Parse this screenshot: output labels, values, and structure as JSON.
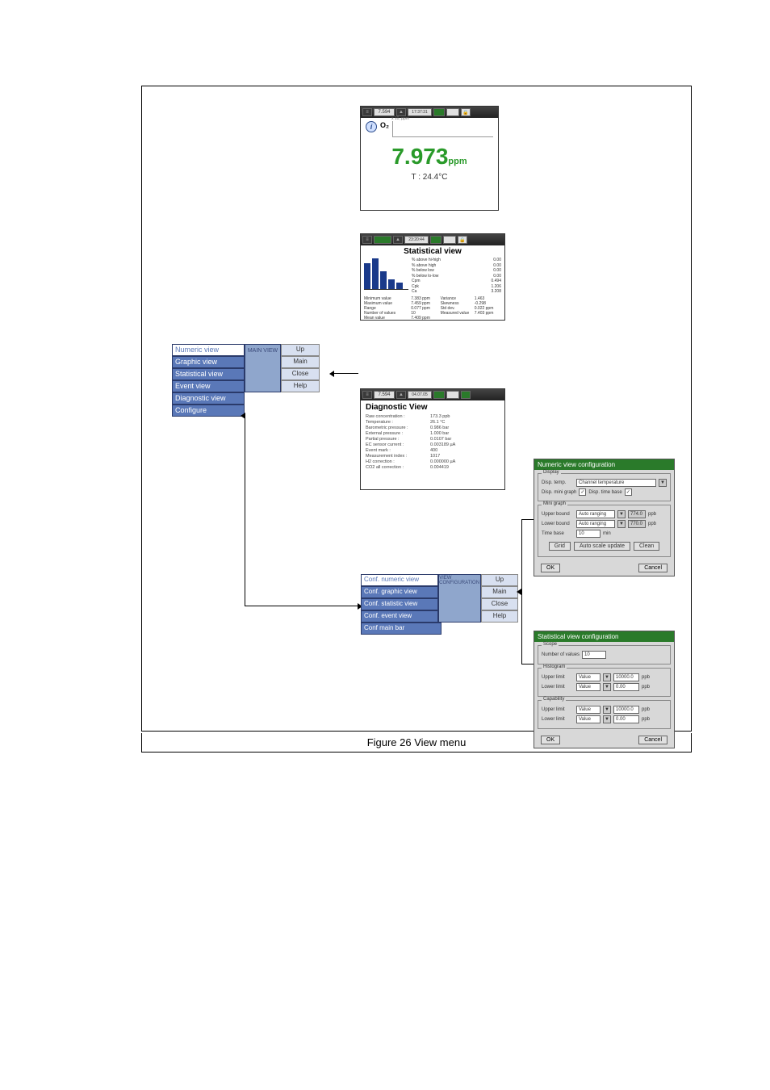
{
  "caption": "Figure 26  View menu",
  "main_view_menu": {
    "center_label": "MAIN VIEW",
    "items": [
      "Numeric view",
      "Graphic view",
      "Statistical view",
      "Event view",
      "Diagnostic view",
      "Configure"
    ],
    "selected_index": 0,
    "right_buttons": [
      "Up",
      "Main",
      "Close",
      "Help"
    ]
  },
  "view_config_menu": {
    "center_label": "VIEW CONFIGURATION",
    "items": [
      "Conf. numeric view",
      "Conf. graphic view",
      "Conf. statistic view",
      "Conf. event view",
      "Conf main bar"
    ],
    "selected_index": 0,
    "right_buttons": [
      "Up",
      "Main",
      "Close",
      "Help"
    ]
  },
  "numeric_window": {
    "do2_label": "O₂",
    "axis_label": "x 10, ppm",
    "value": "7.973",
    "unit": "ppm",
    "temperature": "T : 24.4°C"
  },
  "statistical_window": {
    "title": "Statistical view",
    "bars": [
      32,
      38,
      22,
      12,
      8
    ],
    "side_stats": [
      {
        "label": "% above hi-high",
        "val": "0.00"
      },
      {
        "label": "% above high",
        "val": "0.00"
      },
      {
        "label": "% below low",
        "val": "0.00"
      },
      {
        "label": "% below lo-low",
        "val": "0.00"
      },
      {
        "label": "Cpm",
        "val": "0.494"
      },
      {
        "label": "Cpk",
        "val": "1.206"
      },
      {
        "label": "Ca",
        "val": "3.208"
      }
    ],
    "grid_rows": [
      {
        "l1": "Minimum value",
        "v1": "7.383 ppm",
        "l2": "Variance",
        "v2": "1.463"
      },
      {
        "l1": "Maximum value",
        "v1": "7.459 ppm",
        "l2": "Skewness",
        "v2": "-0.298"
      },
      {
        "l1": "Range",
        "v1": "0.077 ppm",
        "l2": "Std dev.",
        "v2": "0.022 ppm"
      },
      {
        "l1": "Number of values",
        "v1": "10",
        "l2": "Measured value",
        "v2": "7.403 ppm"
      },
      {
        "l1": "Mean value",
        "v1": "7.409 ppm",
        "l2": "",
        "v2": ""
      }
    ]
  },
  "diagnostic_window": {
    "title": "Diagnostic View",
    "rows": [
      {
        "label": "Raw concentration :",
        "val": "173.3 ppb"
      },
      {
        "label": "Temperature :",
        "val": "26.1 °C"
      },
      {
        "label": "Barometric pressure :",
        "val": "0.986 bar"
      },
      {
        "label": "External pressure :",
        "val": "1.000 bar"
      },
      {
        "label": "Partial pressure :",
        "val": "0.0107 bar"
      },
      {
        "label": "EC sensor current :",
        "val": "0.003189 µA"
      },
      {
        "label": "Event mark :",
        "val": "400"
      },
      {
        "label": "Measurement index :",
        "val": "1017"
      },
      {
        "label": "H2 correction :",
        "val": "0.000000 µA"
      },
      {
        "label": "CO2 all correction :",
        "val": "0.004419"
      }
    ]
  },
  "numeric_config": {
    "title": "Numeric view configuration",
    "display": {
      "legend": "Display",
      "temp_label": "Disp. temp.",
      "temp_value": "Channel temperature",
      "mini_graph_label": "Disp. mini graph",
      "time_base_label": "Disp. time base"
    },
    "minigraph": {
      "legend": "Mini graph",
      "upper_label": "Upper bound",
      "upper_value": "Auto ranging",
      "upper_num": "774.0",
      "upper_unit": "ppb",
      "lower_label": "Lower bound",
      "lower_value": "Auto ranging",
      "lower_num": "770.0",
      "lower_unit": "ppb",
      "timebase_label": "Time base",
      "timebase_value": "10",
      "timebase_unit": "min"
    },
    "buttons": {
      "grid": "Grid",
      "auto": "Auto scale update",
      "clean": "Clean",
      "ok": "OK",
      "cancel": "Cancel"
    }
  },
  "stat_config": {
    "title": "Statistical view configuration",
    "scope": {
      "legend": "Scope",
      "label": "Number of values",
      "value": "10"
    },
    "histogram": {
      "legend": "Histogram",
      "upper_label": "Upper limit",
      "upper_sel": "Value",
      "upper_val": "10000.0",
      "upper_unit": "ppb",
      "lower_label": "Lower limit",
      "lower_sel": "Value",
      "lower_val": "0.00",
      "lower_unit": "ppb"
    },
    "capability": {
      "legend": "Capability",
      "upper_label": "Upper limit",
      "upper_sel": "Value",
      "upper_val": "10000.0",
      "upper_unit": "ppb",
      "lower_label": "Lower limit",
      "lower_sel": "Value",
      "lower_val": "0.00",
      "lower_unit": "ppb"
    },
    "buttons": {
      "ok": "OK",
      "cancel": "Cancel"
    }
  },
  "titlebar_labels": {
    "time1": "7.594",
    "time2": "23:20:44",
    "ppm_small": "17:37:31",
    "date": "04.07.05"
  },
  "colors": {
    "menu_bg": "#5a78b8",
    "menu_mid": "#8fa6cc",
    "menu_btn": "#d8e0f0",
    "green_ok": "#2a7a2a",
    "value_green": "#2a9a2a",
    "bar_blue": "#1a3a8a",
    "panel_gray": "#d8d8d8"
  }
}
